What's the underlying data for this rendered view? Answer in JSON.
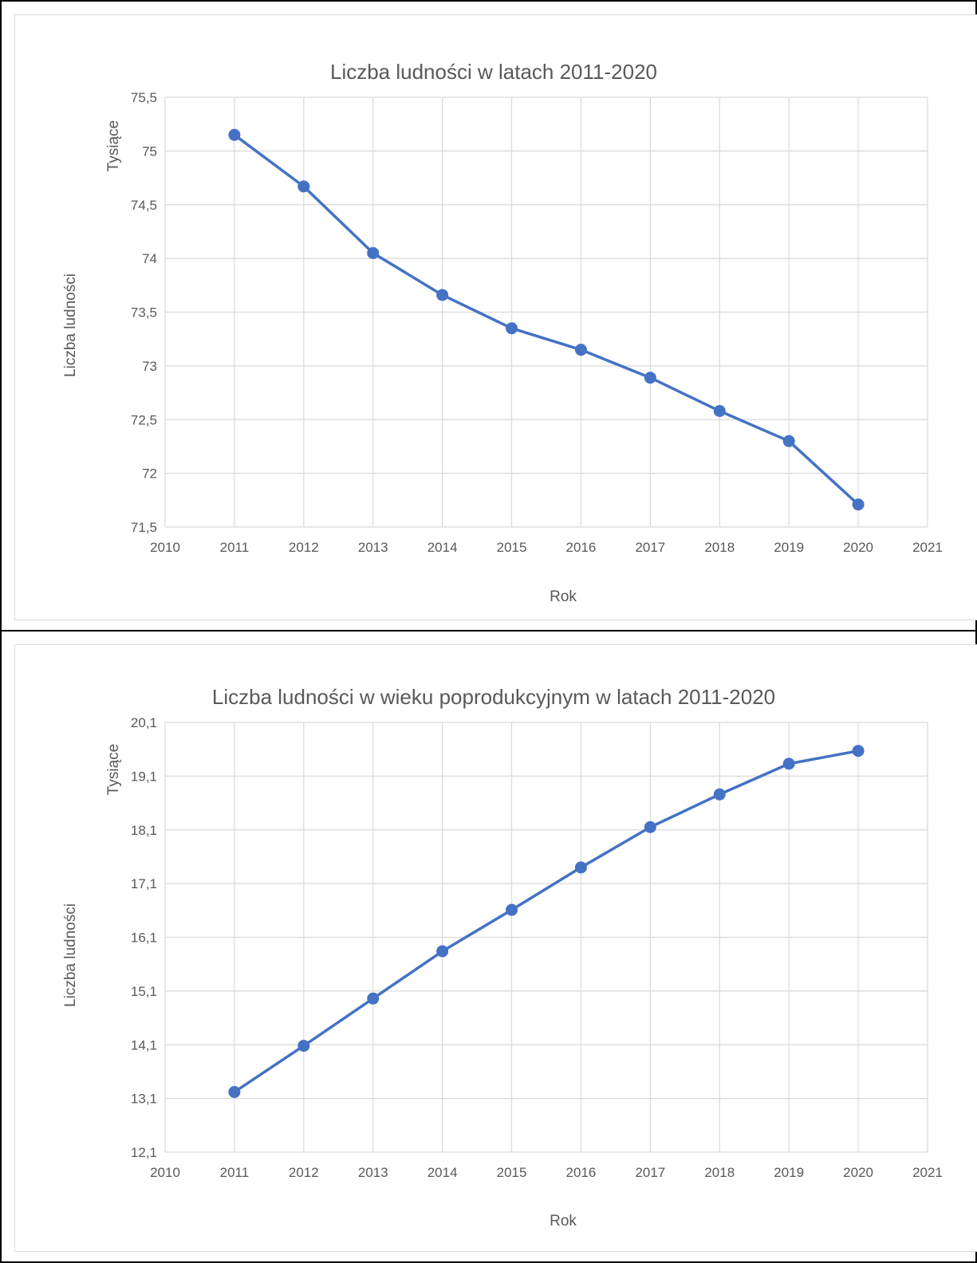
{
  "chart_data": [
    {
      "type": "scatter",
      "title": "Liczba ludności w latach 2011-2020",
      "xlabel": "Rok",
      "ylabel": "Liczba ludności",
      "yunit_label": "Tysiące",
      "xlim": [
        2010,
        2021
      ],
      "ylim": [
        71.5,
        75.5
      ],
      "xticks": [
        "2010",
        "2011",
        "2012",
        "2013",
        "2014",
        "2015",
        "2016",
        "2017",
        "2018",
        "2019",
        "2020",
        "2021"
      ],
      "yticks": [
        "71,5",
        "72",
        "72,5",
        "73",
        "73,5",
        "74",
        "74,5",
        "75",
        "75,5"
      ],
      "grid": true,
      "legend": "none",
      "series_color": "#4472c4",
      "x": [
        2011,
        2012,
        2013,
        2014,
        2015,
        2016,
        2017,
        2018,
        2019,
        2020
      ],
      "series": [
        {
          "values": [
            75.15,
            74.67,
            74.05,
            73.66,
            73.35,
            73.15,
            72.89,
            72.58,
            72.3,
            71.71
          ]
        }
      ]
    },
    {
      "type": "scatter",
      "title": "Liczba ludności w wieku poprodukcyjnym w latach 2011-2020",
      "xlabel": "Rok",
      "ylabel": "Liczba ludności",
      "yunit_label": "Tysiące",
      "xlim": [
        2010,
        2021
      ],
      "ylim": [
        12.1,
        20.1
      ],
      "xticks": [
        "2010",
        "2011",
        "2012",
        "2013",
        "2014",
        "2015",
        "2016",
        "2017",
        "2018",
        "2019",
        "2020",
        "2021"
      ],
      "yticks": [
        "12,1",
        "13,1",
        "14,1",
        "15,1",
        "16,1",
        "17,1",
        "18,1",
        "19,1",
        "20,1"
      ],
      "grid": true,
      "legend": "none",
      "series_color": "#4472c4",
      "x": [
        2011,
        2012,
        2013,
        2014,
        2015,
        2016,
        2017,
        2018,
        2019,
        2020
      ],
      "series": [
        {
          "values": [
            13.22,
            14.08,
            14.96,
            15.84,
            16.61,
            17.4,
            18.15,
            18.76,
            19.33,
            19.57
          ]
        }
      ]
    }
  ]
}
